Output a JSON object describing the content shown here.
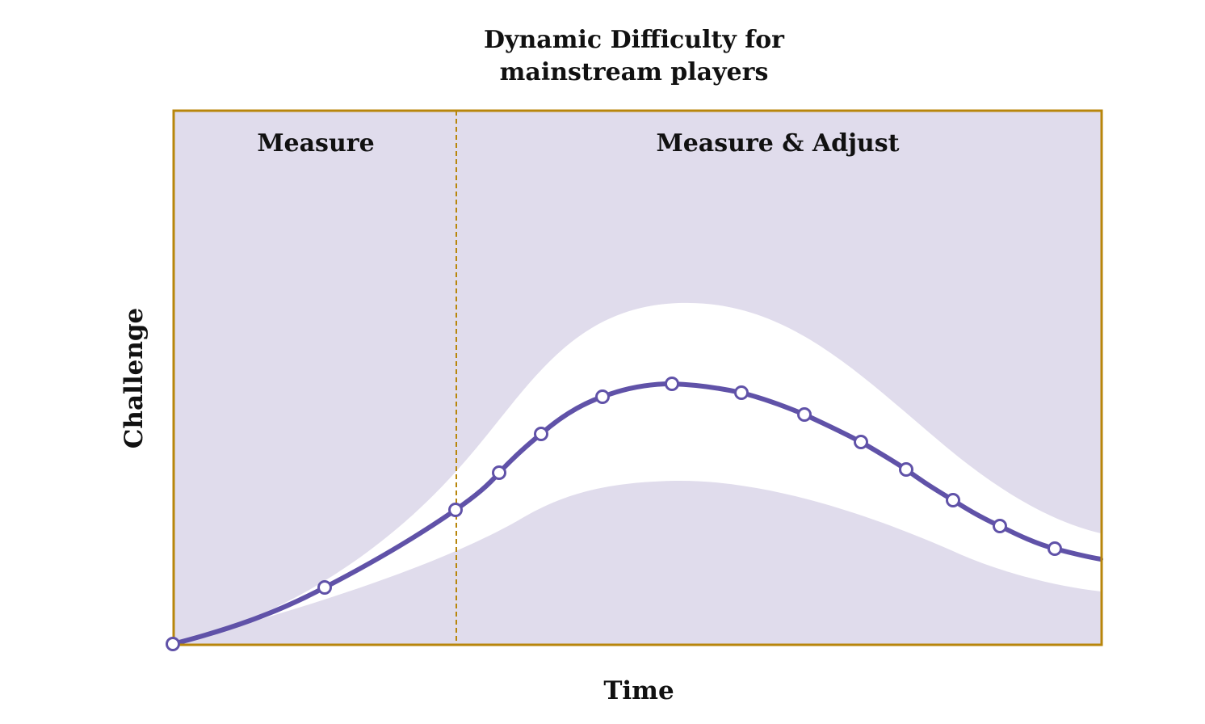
{
  "title": {
    "line1": "Dynamic Difficulty for",
    "line2": "mainstream players"
  },
  "regions": {
    "measure": "Measure",
    "measure_adjust": "Measure & Adjust"
  },
  "axes": {
    "x_label": "Time",
    "y_label": "Challenge"
  },
  "colors": {
    "frame": "#b8860b",
    "band_fill": "#e0dcec",
    "corridor": "#ffffff",
    "curve": "#6052a8",
    "point_fill": "#ffffff",
    "divider": "#b8860b"
  }
}
